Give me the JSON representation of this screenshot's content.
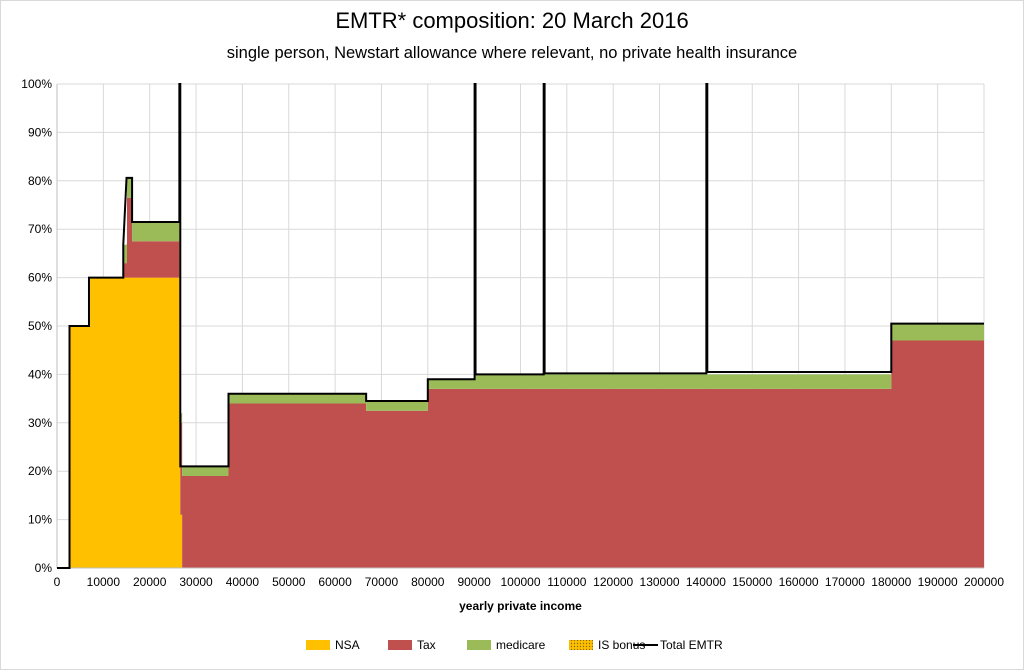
{
  "chart_data": {
    "type": "area",
    "title": "EMTR* composition: 20 March 2016",
    "subtitle": "single person, Newstart allowance where relevant, no private health insurance",
    "xlabel": "yearly private income",
    "ylabel": "",
    "xlim": [
      0,
      200000
    ],
    "ylim": [
      0,
      100
    ],
    "x_ticks": [
      0,
      10000,
      20000,
      30000,
      40000,
      50000,
      60000,
      70000,
      80000,
      90000,
      100000,
      110000,
      120000,
      130000,
      140000,
      150000,
      160000,
      170000,
      180000,
      190000,
      200000
    ],
    "y_ticks": [
      "0%",
      "10%",
      "20%",
      "30%",
      "40%",
      "50%",
      "60%",
      "70%",
      "80%",
      "90%",
      "100%"
    ],
    "grid": true,
    "legend_position": "bottom",
    "colors": {
      "NSA": "#ffc000",
      "Tax": "#c0504d",
      "medicare": "#9bbb59",
      "IS bonus": "#ffc000",
      "Total EMTR": "#000000"
    },
    "series": [
      {
        "name": "NSA",
        "kind": "area",
        "points": [
          [
            0,
            0
          ],
          [
            2700,
            0
          ],
          [
            2700,
            50
          ],
          [
            6900,
            50
          ],
          [
            6900,
            60
          ],
          [
            26600,
            60
          ],
          [
            26600,
            11
          ],
          [
            27000,
            11
          ],
          [
            27000,
            0
          ],
          [
            200000,
            0
          ]
        ]
      },
      {
        "name": "Tax",
        "kind": "area",
        "points": [
          [
            0,
            0
          ],
          [
            14300,
            0
          ],
          [
            14300,
            3
          ],
          [
            15100,
            3
          ],
          [
            15100,
            16.5
          ],
          [
            16200,
            16.5
          ],
          [
            16200,
            7.5
          ],
          [
            26400,
            7.5
          ],
          [
            26400,
            0
          ],
          [
            26600,
            0
          ],
          [
            26600,
            19
          ],
          [
            37000,
            19
          ],
          [
            37000,
            34
          ],
          [
            66700,
            34
          ],
          [
            66700,
            32.5
          ],
          [
            80000,
            32.5
          ],
          [
            80000,
            37
          ],
          [
            180000,
            37
          ],
          [
            180000,
            47
          ],
          [
            200000,
            47
          ]
        ]
      },
      {
        "name": "medicare",
        "kind": "area",
        "points": [
          [
            0,
            0
          ],
          [
            14300,
            0
          ],
          [
            14300,
            3.8
          ],
          [
            15000,
            3.8
          ],
          [
            15000,
            4
          ],
          [
            16200,
            4
          ],
          [
            16200,
            4
          ],
          [
            26400,
            4
          ],
          [
            26400,
            0
          ],
          [
            26600,
            0
          ],
          [
            26600,
            2
          ],
          [
            37000,
            2
          ],
          [
            37000,
            2
          ],
          [
            66700,
            2
          ],
          [
            66700,
            2
          ],
          [
            80000,
            2
          ],
          [
            80000,
            2
          ],
          [
            90100,
            2
          ],
          [
            90100,
            3
          ],
          [
            180000,
            3
          ],
          [
            180000,
            3.5
          ],
          [
            200000,
            3.5
          ]
        ]
      },
      {
        "name": "IS bonus",
        "kind": "area",
        "points": [
          [
            0,
            0
          ],
          [
            26400,
            0
          ],
          [
            26400,
            23
          ],
          [
            26600,
            23
          ],
          [
            26600,
            0
          ],
          [
            200000,
            0
          ]
        ]
      },
      {
        "name": "Total EMTR",
        "kind": "line",
        "points": [
          [
            0,
            0
          ],
          [
            2700,
            0
          ],
          [
            2700,
            50
          ],
          [
            6900,
            50
          ],
          [
            6900,
            60
          ],
          [
            14300,
            60
          ],
          [
            14300,
            66.8
          ],
          [
            15000,
            80.6
          ],
          [
            16200,
            80.6
          ],
          [
            16200,
            71.5
          ],
          [
            26400,
            71.5
          ],
          [
            26400,
            100
          ],
          [
            26600,
            100
          ],
          [
            26600,
            21
          ],
          [
            37000,
            21
          ],
          [
            37000,
            36
          ],
          [
            66700,
            36
          ],
          [
            66700,
            34.5
          ],
          [
            80000,
            34.5
          ],
          [
            80000,
            39
          ],
          [
            90100,
            39
          ],
          [
            90100,
            100
          ],
          [
            90300,
            100
          ],
          [
            90300,
            40
          ],
          [
            105000,
            40
          ],
          [
            105000,
            100
          ],
          [
            105200,
            100
          ],
          [
            105200,
            40.2
          ],
          [
            140100,
            40.2
          ],
          [
            140100,
            100
          ],
          [
            140300,
            100
          ],
          [
            140300,
            40.5
          ],
          [
            180000,
            40.5
          ],
          [
            180000,
            50.5
          ],
          [
            200000,
            50.5
          ]
        ]
      }
    ]
  }
}
